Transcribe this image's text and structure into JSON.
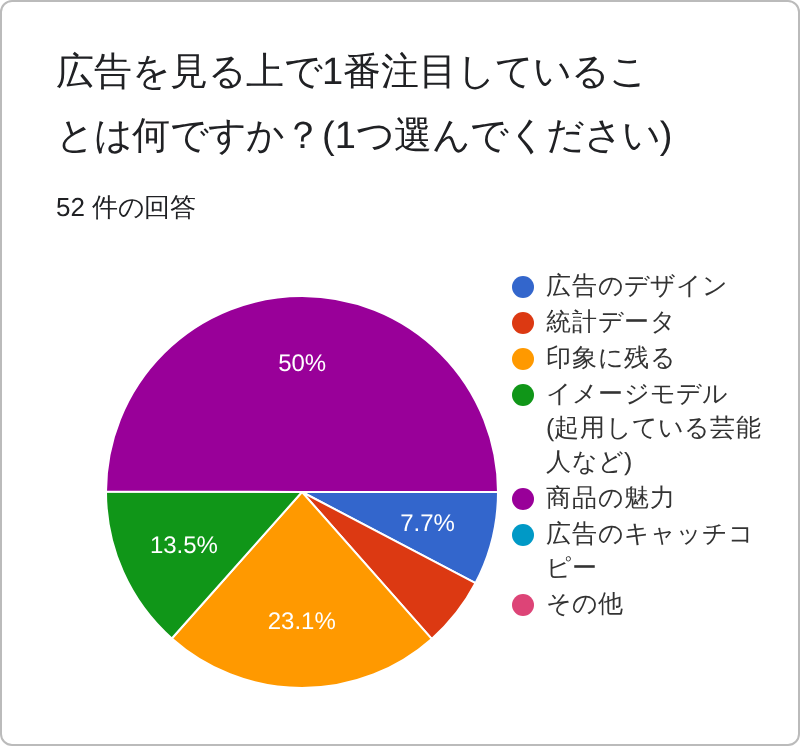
{
  "chart_data": {
    "type": "pie",
    "title": "広告を見る上で1番注目していることは何ですか？(1つ選んでください)",
    "subtitle": "52 件の回答",
    "categories": [
      "広告のデザイン",
      "統計データ",
      "印象に残る",
      "イメージモデル (起用している芸能人など)",
      "商品の魅力",
      "広告のキャッチコピー",
      "その他"
    ],
    "values": [
      7.7,
      5.8,
      23.1,
      13.5,
      50,
      0,
      0
    ],
    "value_labels": [
      "7.7%",
      null,
      "23.1%",
      "13.5%",
      "50%",
      null,
      null
    ],
    "colors": [
      "#3366cc",
      "#dc3912",
      "#ff9900",
      "#109618",
      "#990099",
      "#0099c6",
      "#dd4477"
    ],
    "legend": "right"
  }
}
